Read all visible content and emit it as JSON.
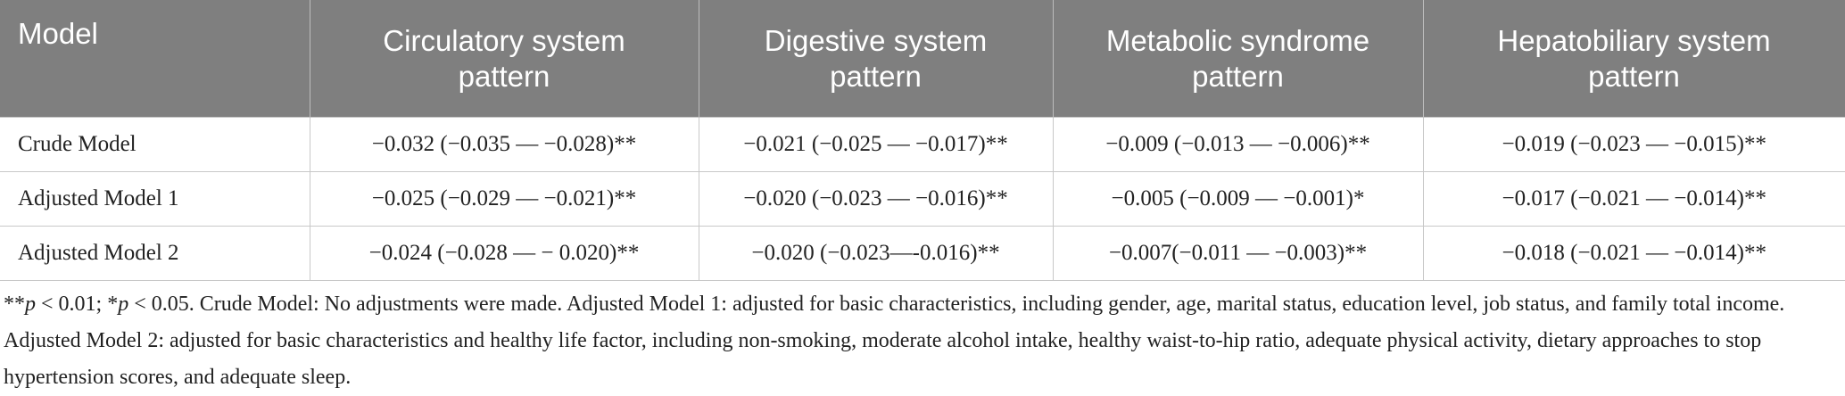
{
  "table": {
    "header": [
      "Model",
      "Circulatory system pattern",
      "Digestive system pattern",
      "Metabolic syndrome pattern",
      "Hepatobiliary system pattern"
    ],
    "rows": [
      [
        "Crude Model",
        "−0.032 (−0.035 — −0.028)**",
        "−0.021 (−0.025 — −0.017)**",
        "−0.009 (−0.013 — −0.006)**",
        "−0.019 (−0.023 — −0.015)**"
      ],
      [
        "Adjusted Model 1",
        "−0.025 (−0.029 — −0.021)**",
        "−0.020 (−0.023 — −0.016)**",
        "−0.005 (−0.009 — −0.001)*",
        "−0.017 (−0.021 — −0.014)**"
      ],
      [
        "Adjusted Model 2",
        "−0.024 (−0.028 — − 0.020)**",
        "−0.020 (−0.023—-0.016)**",
        "−0.007(−0.011 — −0.003)**",
        "−0.018 (−0.021 — −0.014)**"
      ]
    ]
  },
  "footnote": [
    "**",
    "p",
    " < 0.01; *",
    "p",
    " < 0.05. Crude Model: No adjustments were made. Adjusted Model 1: adjusted for basic characteristics, including gender, age, marital status, education level, job status, and family total income. Adjusted Model 2: adjusted for basic characteristics and healthy life factor, including non-smoking, moderate alcohol intake, healthy waist-to-hip ratio, adequate physical activity, dietary approaches to stop hypertension scores, and adequate sleep."
  ]
}
